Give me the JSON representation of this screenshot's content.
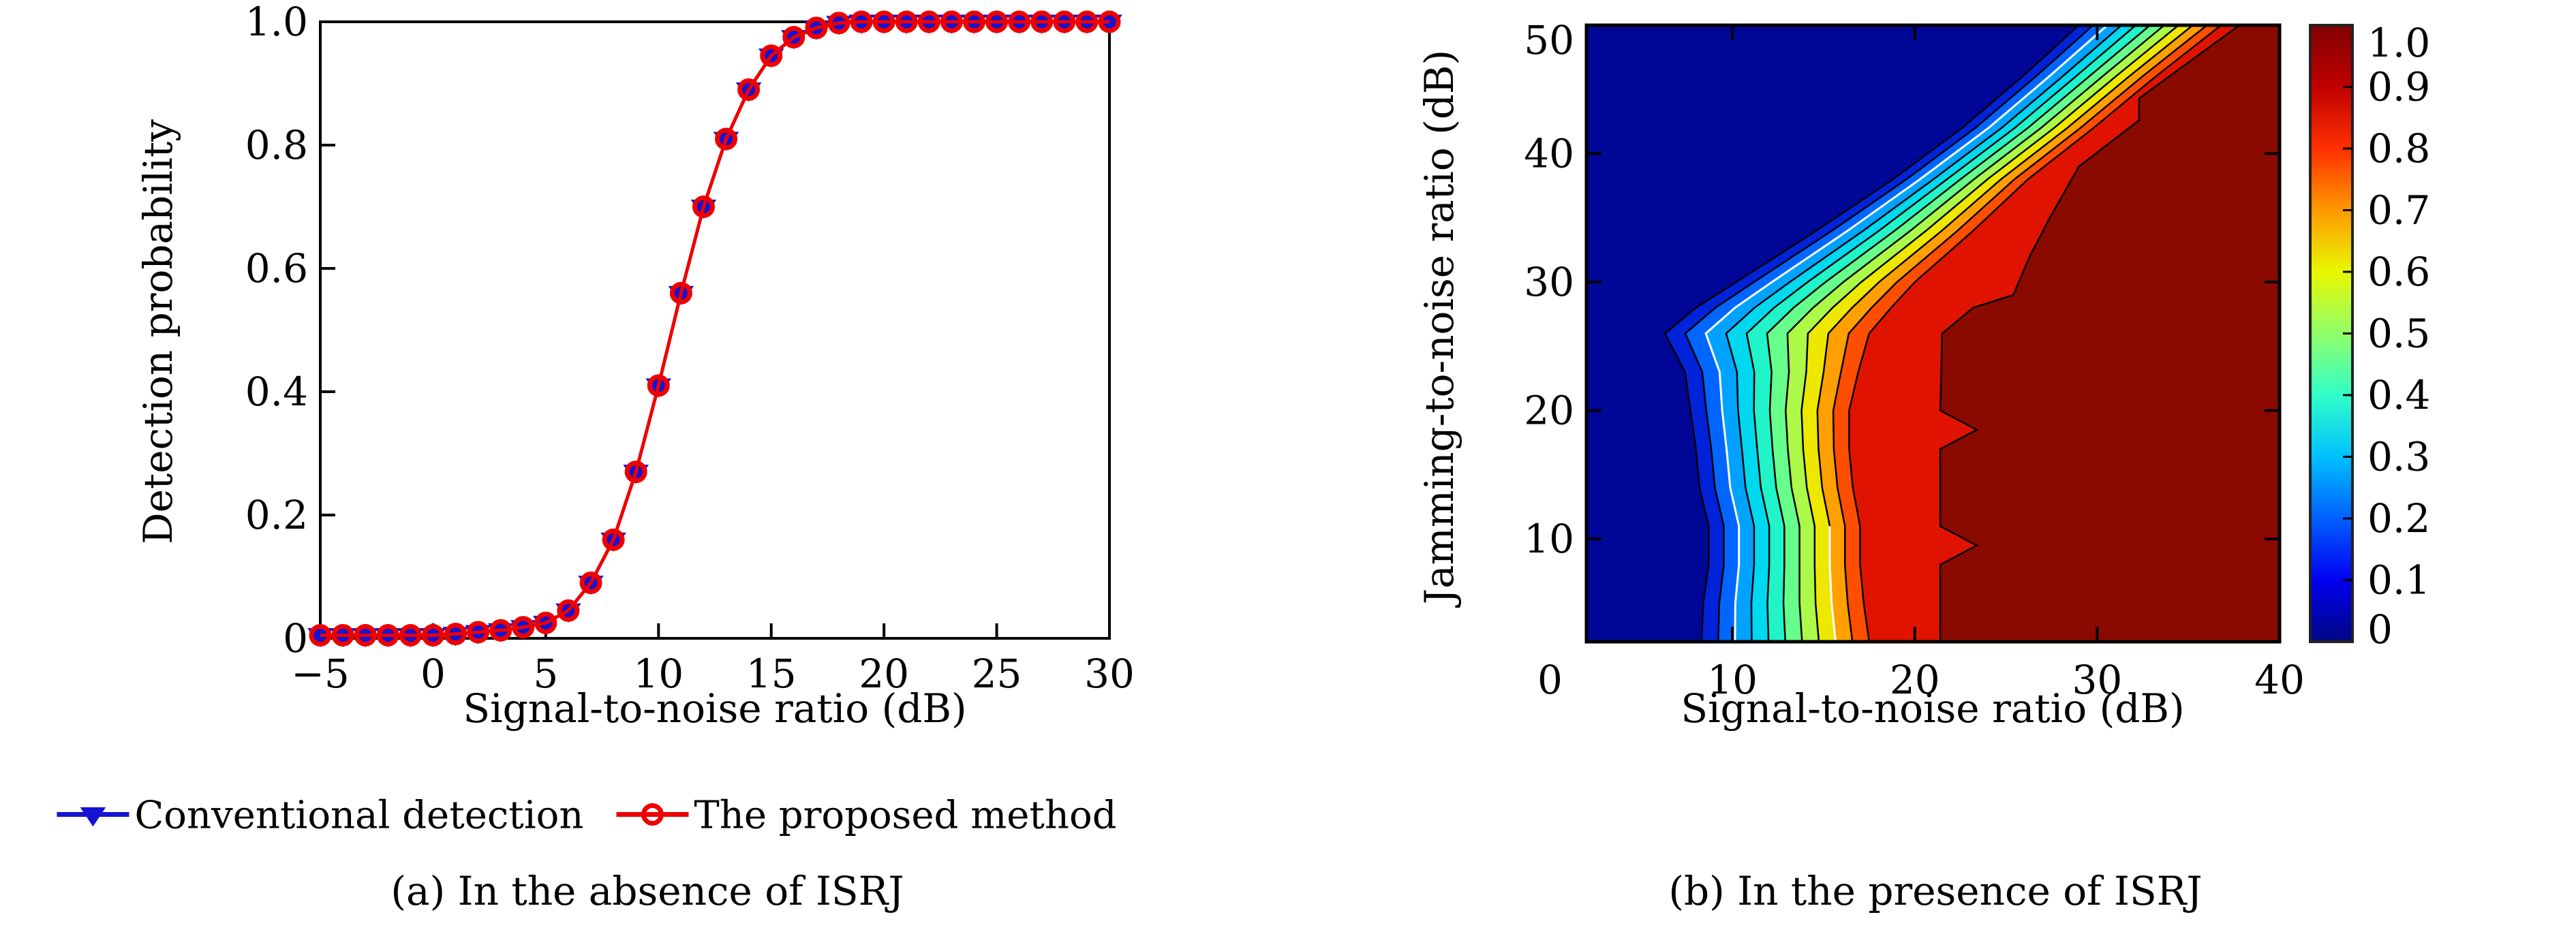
{
  "figure": {
    "background": "#ffffff",
    "panel_a_caption": "(a) In the absence of ISRJ",
    "panel_b_caption": "(b) In the presence of ISRJ"
  },
  "chart_data": [
    {
      "type": "line",
      "caption": "(a) In the absence of ISRJ",
      "xlabel": "Signal-to-noise ratio (dB)",
      "ylabel": "Detection probability",
      "xlim": [
        -5,
        30
      ],
      "ylim": [
        0,
        1
      ],
      "xticks": [
        -5,
        0,
        5,
        10,
        15,
        20,
        25,
        30
      ],
      "xtick_labels": [
        "−5",
        "0",
        "5",
        "10",
        "15",
        "20",
        "25",
        "30"
      ],
      "yticks": [
        0,
        0.2,
        0.4,
        0.6,
        0.8,
        1.0
      ],
      "ytick_labels": [
        "0",
        "0.2",
        "0.4",
        "0.6",
        "0.8",
        "1.0"
      ],
      "grid": false,
      "legend_position": "below",
      "x": [
        -5,
        -4,
        -3,
        -2,
        -1,
        0,
        1,
        2,
        3,
        4,
        5,
        6,
        7,
        8,
        9,
        10,
        11,
        12,
        13,
        14,
        15,
        16,
        17,
        18,
        19,
        20,
        21,
        22,
        23,
        24,
        25,
        26,
        27,
        28,
        29,
        30
      ],
      "series": [
        {
          "name": "Conventional detection",
          "color": "#1414d2",
          "marker": "triangle-down",
          "marker_fill": "#1414d2",
          "values": [
            0.005,
            0.005,
            0.005,
            0.005,
            0.005,
            0.005,
            0.007,
            0.01,
            0.013,
            0.018,
            0.025,
            0.045,
            0.09,
            0.16,
            0.27,
            0.41,
            0.56,
            0.7,
            0.81,
            0.89,
            0.945,
            0.975,
            0.99,
            0.998,
            1,
            1,
            1,
            1,
            1,
            1,
            1,
            1,
            1,
            1,
            1,
            1
          ]
        },
        {
          "name": "The proposed method",
          "color": "#ee0000",
          "marker": "circle-open",
          "marker_fill": "none",
          "values": [
            0.005,
            0.005,
            0.005,
            0.005,
            0.005,
            0.005,
            0.007,
            0.01,
            0.013,
            0.018,
            0.025,
            0.045,
            0.09,
            0.16,
            0.27,
            0.41,
            0.56,
            0.7,
            0.81,
            0.89,
            0.945,
            0.975,
            0.99,
            0.998,
            1,
            1,
            1,
            1,
            1,
            1,
            1,
            1,
            1,
            1,
            1,
            1
          ]
        }
      ]
    },
    {
      "type": "heatmap",
      "subtype": "filled-contour",
      "caption": "(b) In the presence of ISRJ",
      "xlabel": "Signal-to-noise ratio (dB)",
      "ylabel": "Jamming-to-noise ratio (dB)",
      "value_label": "Detection probability",
      "xlim": [
        2,
        40
      ],
      "ylim": [
        2,
        50
      ],
      "xticks": [
        0,
        10,
        20,
        30,
        40
      ],
      "xtick_labels": [
        "0",
        "10",
        "20",
        "30",
        "40"
      ],
      "yticks": [
        10,
        20,
        30,
        40,
        50
      ],
      "ytick_labels": [
        "10",
        "20",
        "30",
        "40",
        "50"
      ],
      "colormap": "jet",
      "colorbar": {
        "min": 0,
        "max": 1,
        "tick_labels": [
          "1.0",
          "0.9",
          "0.8",
          "0.7",
          "0.6",
          "0.5",
          "0.4",
          "0.3",
          "0.2",
          "0.1",
          "0"
        ],
        "gradient_stops": [
          "#000784",
          "#0000f0",
          "#0060ff",
          "#00c0ff",
          "#30ffc8",
          "#90ff68",
          "#e8f800",
          "#ff9800",
          "#ff3000",
          "#c00000",
          "#800000"
        ]
      },
      "field_colors": {
        "low_field": "#000796",
        "bright_red_field": "#e01300",
        "max_field": "#8b0a00",
        "band_colors": [
          "#0022d8",
          "#0066ff",
          "#00a2ff",
          "#00d8f0",
          "#20f4c8",
          "#66ff8c",
          "#acf948",
          "#eee800",
          "#ffa000",
          "#ff4e00"
        ]
      },
      "contour_geometry": {
        "comment": "Transition band of detection probability. jnr_knots with snr of left edge (level 0.1) and right edge (level ~0.9); ten rainbow bands interpolate between. maroon_boundary = start of P=1 region.",
        "jnr_knots": [
          2,
          5,
          8,
          11,
          14,
          17,
          20,
          23,
          26,
          28,
          30,
          34,
          38,
          42,
          46,
          50
        ],
        "left_edge_snr": [
          8.3,
          8.4,
          8.7,
          8.7,
          8.2,
          8.0,
          7.7,
          7.4,
          6.3,
          8.0,
          10.2,
          14.6,
          18.8,
          22.6,
          25.9,
          29.0
        ],
        "right_edge_snr": [
          17.5,
          17.2,
          17.0,
          17.0,
          16.6,
          16.4,
          16.4,
          16.9,
          17.5,
          18.7,
          20.0,
          23.2,
          26.2,
          29.8,
          33.2,
          36.8
        ],
        "maroon_boundary": [
          [
            2,
            21.4
          ],
          [
            8,
            21.4
          ],
          [
            9.5,
            23.4
          ],
          [
            11,
            21.4
          ],
          [
            17,
            21.4
          ],
          [
            18.5,
            23.4
          ],
          [
            20,
            21.4
          ],
          [
            26,
            21.5
          ],
          [
            28,
            23.2
          ],
          [
            29,
            25.4
          ],
          [
            32,
            26.3
          ],
          [
            35,
            27.4
          ],
          [
            39,
            29.0
          ],
          [
            42.6,
            32.3
          ],
          [
            44.3,
            32.3
          ],
          [
            50,
            37.8
          ]
        ]
      }
    }
  ]
}
